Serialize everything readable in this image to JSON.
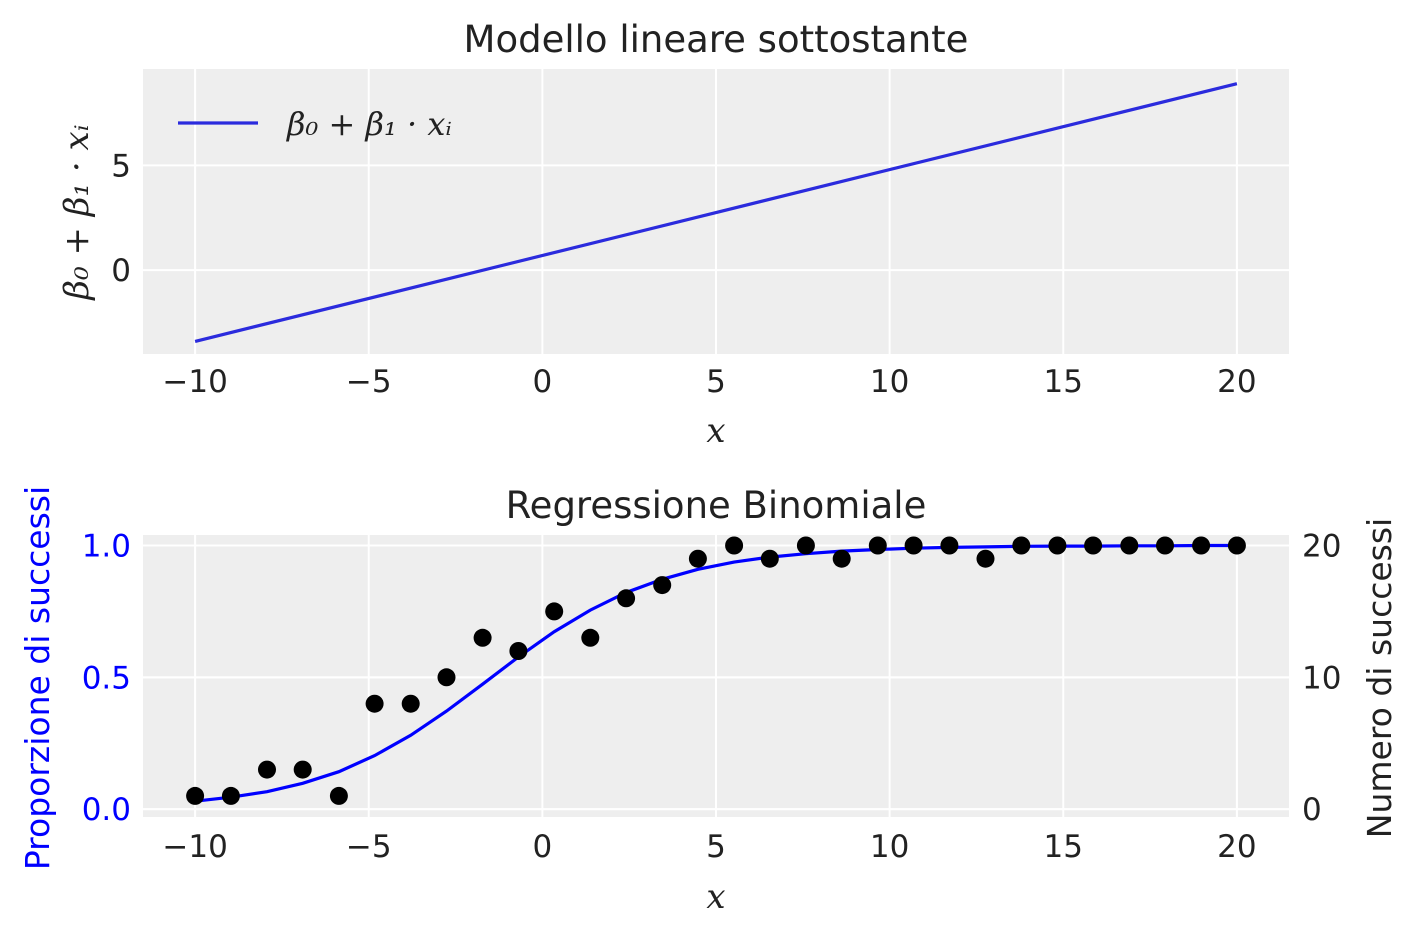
{
  "chart_data": [
    {
      "type": "line",
      "title": "Modello lineare sottostante",
      "xlabel": "x",
      "ylabel": "β₀ + β₁ · xᵢ",
      "xlim": [
        -11.5,
        21.5
      ],
      "ylim": [
        -4.0,
        9.6
      ],
      "xticks": [
        -10,
        -5,
        0,
        5,
        10,
        15,
        20
      ],
      "xtick_labels": [
        "−10",
        "−5",
        "0",
        "5",
        "10",
        "15",
        "20"
      ],
      "yticks": [
        0,
        5
      ],
      "ytick_labels": [
        "0",
        "5"
      ],
      "grid": true,
      "legend": {
        "position": "top-left",
        "label": "β₀ + β₁ · xᵢ"
      },
      "series": [
        {
          "name": "β₀ + β₁ · xᵢ",
          "color": "#2b2bdd",
          "x": [
            -10,
            20
          ],
          "y": [
            -3.4,
            8.9
          ]
        }
      ]
    },
    {
      "type": "line",
      "title": "Regressione Binomiale",
      "xlabel": "x",
      "ylabel": "Proporzione di successi",
      "ylabel_right": "Numero di successi",
      "xlim": [
        -11.5,
        21.5
      ],
      "ylim": [
        -0.03,
        1.04
      ],
      "ylim_right": [
        -0.6,
        20.8
      ],
      "xticks": [
        -10,
        -5,
        0,
        5,
        10,
        15,
        20
      ],
      "xtick_labels": [
        "−10",
        "−5",
        "0",
        "5",
        "10",
        "15",
        "20"
      ],
      "yticks": [
        0.0,
        0.5,
        1.0
      ],
      "ytick_labels": [
        "0.0",
        "0.5",
        "1.0"
      ],
      "yticks_right": [
        0,
        10,
        20
      ],
      "ytick_labels_right": [
        "0",
        "10",
        "20"
      ],
      "grid": true,
      "colors": {
        "curve": "#0000ff",
        "points": "#000000",
        "left_axis": "#0000ff"
      },
      "series": [
        {
          "kind": "curve",
          "x": [
            -10.0,
            -8.97,
            -7.93,
            -6.9,
            -5.86,
            -4.83,
            -3.79,
            -2.76,
            -1.72,
            -0.69,
            0.34,
            1.38,
            2.41,
            3.45,
            4.48,
            5.52,
            6.55,
            7.59,
            8.62,
            9.66,
            10.69,
            11.72,
            12.76,
            13.79,
            14.83,
            15.86,
            16.9,
            17.93,
            18.97,
            20.0
          ],
          "y": [
            0.03,
            0.045,
            0.066,
            0.098,
            0.142,
            0.203,
            0.28,
            0.372,
            0.474,
            0.577,
            0.673,
            0.755,
            0.822,
            0.872,
            0.91,
            0.937,
            0.956,
            0.969,
            0.979,
            0.985,
            0.99,
            0.993,
            0.995,
            0.997,
            0.998,
            0.998,
            0.999,
            0.999,
            1.0,
            1.0
          ]
        },
        {
          "kind": "points",
          "x": [
            -10.0,
            -8.97,
            -7.93,
            -6.9,
            -5.86,
            -4.83,
            -3.79,
            -2.76,
            -1.72,
            -0.69,
            0.34,
            1.38,
            2.41,
            3.45,
            4.48,
            5.52,
            6.55,
            7.59,
            8.62,
            9.66,
            10.69,
            11.72,
            12.76,
            13.79,
            14.83,
            15.86,
            16.9,
            17.93,
            18.97,
            20.0
          ],
          "y": [
            1,
            1,
            3,
            3,
            1,
            8,
            8,
            10,
            13,
            12,
            15,
            13,
            16,
            17,
            19,
            20,
            19,
            20,
            19,
            20,
            20,
            20,
            19,
            20,
            20,
            20,
            20,
            20,
            20,
            20
          ]
        }
      ]
    }
  ]
}
